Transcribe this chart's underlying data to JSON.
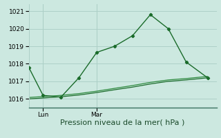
{
  "title": "",
  "xlabel": "Pression niveau de la mer( hPa )",
  "ylabel": "",
  "bg_color": "#cce8e0",
  "grid_color": "#aed0c8",
  "line_color": "#1a6b2a",
  "line_color2": "#2d8a3e",
  "ylim": [
    1015.5,
    1021.4
  ],
  "xlim": [
    0,
    10.5
  ],
  "yticks": [
    1016,
    1017,
    1018,
    1019,
    1020,
    1021
  ],
  "lun_x": 0.8,
  "mar_x": 3.8,
  "series1_x": [
    0,
    0.8,
    1.8,
    2.8,
    3.8,
    4.8,
    5.8,
    6.8,
    7.8,
    8.8,
    10.0
  ],
  "series1_y": [
    1017.8,
    1016.2,
    1016.1,
    1017.2,
    1018.65,
    1019.0,
    1019.6,
    1020.8,
    1020.0,
    1018.1,
    1017.2
  ],
  "series2_x": [
    0,
    0.8,
    1.8,
    2.8,
    3.8,
    4.8,
    5.8,
    6.8,
    7.8,
    8.8,
    10.0
  ],
  "series2_y": [
    1016.0,
    1016.05,
    1016.12,
    1016.22,
    1016.36,
    1016.52,
    1016.67,
    1016.85,
    1017.0,
    1017.08,
    1017.2
  ],
  "series3_x": [
    0,
    0.8,
    1.8,
    2.8,
    3.8,
    4.8,
    5.8,
    6.8,
    7.8,
    8.8,
    10.0
  ],
  "series3_y": [
    1016.08,
    1016.13,
    1016.2,
    1016.3,
    1016.44,
    1016.6,
    1016.76,
    1016.94,
    1017.08,
    1017.16,
    1017.28
  ],
  "xlabel_fontsize": 8,
  "tick_fontsize": 6.5
}
